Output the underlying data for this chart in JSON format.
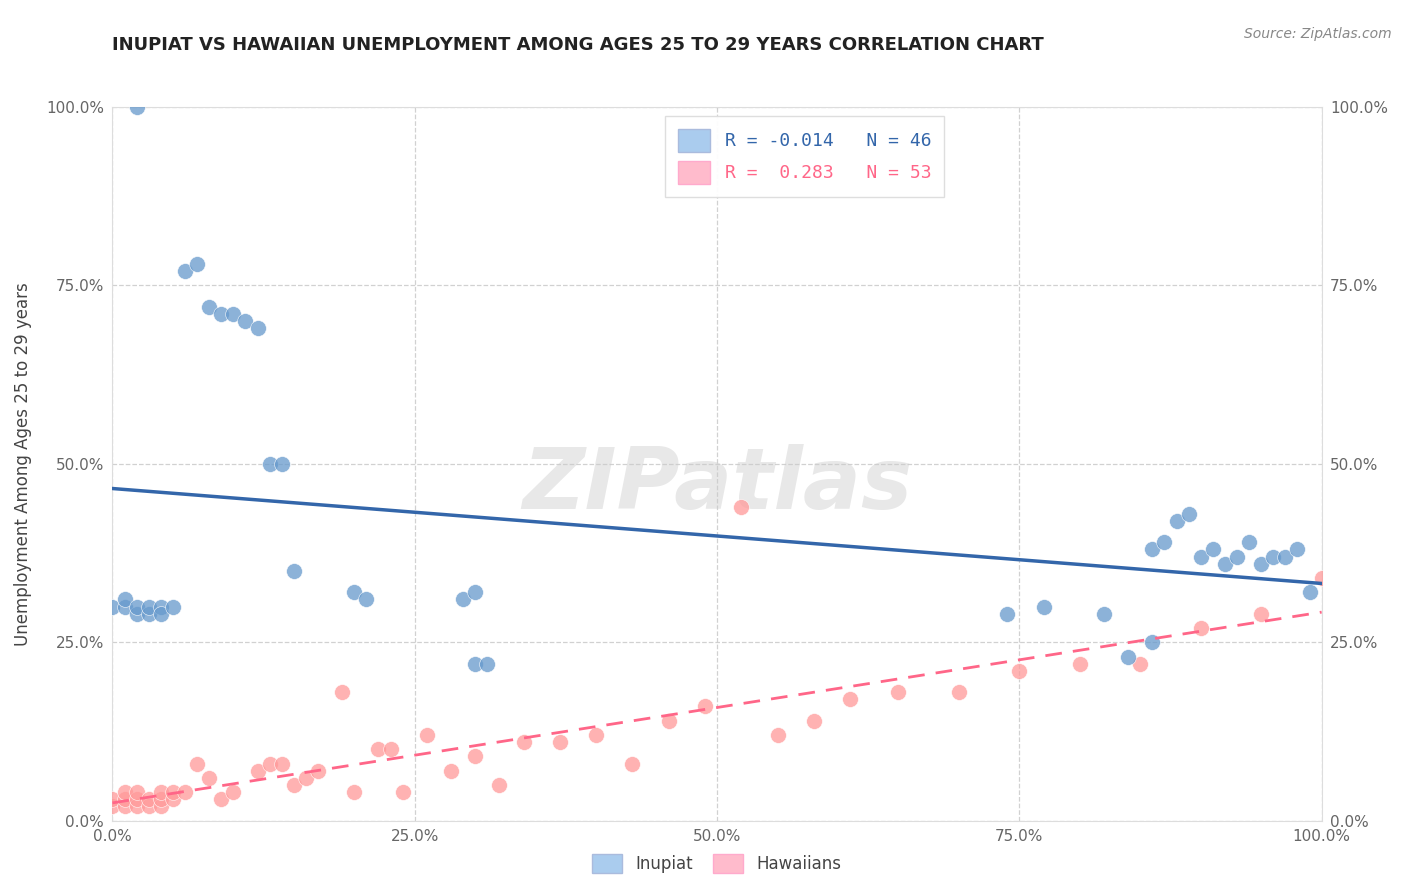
{
  "title": "INUPIAT VS HAWAIIAN UNEMPLOYMENT AMONG AGES 25 TO 29 YEARS CORRELATION CHART",
  "source_text": "Source: ZipAtlas.com",
  "ylabel": "Unemployment Among Ages 25 to 29 years",
  "xlim": [
    0.0,
    1.0
  ],
  "ylim": [
    0.0,
    1.0
  ],
  "tick_values": [
    0.0,
    0.25,
    0.5,
    0.75,
    1.0
  ],
  "tick_labels": [
    "0.0%",
    "25.0%",
    "50.0%",
    "75.0%",
    "100.0%"
  ],
  "inupiat_R": "-0.014",
  "inupiat_N": "46",
  "hawaiian_R": "0.283",
  "hawaiian_N": "53",
  "inupiat_color": "#6699CC",
  "hawaiian_color": "#FF9999",
  "inupiat_line_color": "#3366AA",
  "hawaiian_line_color": "#FF6688",
  "legend_inupiat_face": "#AACCEE",
  "legend_hawaiian_face": "#FFBBCC",
  "inupiat_x": [
    0.02,
    0.06,
    0.07,
    0.08,
    0.09,
    0.1,
    0.11,
    0.12,
    0.13,
    0.14,
    0.15,
    0.2,
    0.21,
    0.29,
    0.3,
    0.0,
    0.01,
    0.01,
    0.02,
    0.02,
    0.03,
    0.03,
    0.04,
    0.04,
    0.05,
    0.3,
    0.31,
    0.86,
    0.87,
    0.88,
    0.89,
    0.9,
    0.91,
    0.92,
    0.93,
    0.94,
    0.95,
    0.96,
    0.97,
    0.98,
    0.74,
    0.77,
    0.82,
    0.84,
    0.86,
    0.99
  ],
  "inupiat_y": [
    1.0,
    0.77,
    0.78,
    0.72,
    0.71,
    0.71,
    0.7,
    0.69,
    0.5,
    0.5,
    0.35,
    0.32,
    0.31,
    0.31,
    0.32,
    0.3,
    0.3,
    0.31,
    0.29,
    0.3,
    0.29,
    0.3,
    0.3,
    0.29,
    0.3,
    0.22,
    0.22,
    0.38,
    0.39,
    0.42,
    0.43,
    0.37,
    0.38,
    0.36,
    0.37,
    0.39,
    0.36,
    0.37,
    0.37,
    0.38,
    0.29,
    0.3,
    0.29,
    0.23,
    0.25,
    0.32
  ],
  "hawaiian_x": [
    0.0,
    0.0,
    0.01,
    0.01,
    0.01,
    0.02,
    0.02,
    0.02,
    0.03,
    0.03,
    0.04,
    0.04,
    0.04,
    0.05,
    0.05,
    0.06,
    0.07,
    0.08,
    0.09,
    0.1,
    0.12,
    0.13,
    0.14,
    0.15,
    0.16,
    0.17,
    0.19,
    0.2,
    0.22,
    0.23,
    0.24,
    0.26,
    0.28,
    0.3,
    0.32,
    0.34,
    0.37,
    0.4,
    0.43,
    0.46,
    0.49,
    0.52,
    0.55,
    0.58,
    0.61,
    0.65,
    0.7,
    0.75,
    0.8,
    0.85,
    0.9,
    0.95,
    1.0
  ],
  "hawaiian_y": [
    0.02,
    0.03,
    0.02,
    0.03,
    0.04,
    0.02,
    0.03,
    0.04,
    0.02,
    0.03,
    0.02,
    0.03,
    0.04,
    0.03,
    0.04,
    0.04,
    0.08,
    0.06,
    0.03,
    0.04,
    0.07,
    0.08,
    0.08,
    0.05,
    0.06,
    0.07,
    0.18,
    0.04,
    0.1,
    0.1,
    0.04,
    0.12,
    0.07,
    0.09,
    0.05,
    0.11,
    0.11,
    0.12,
    0.08,
    0.14,
    0.16,
    0.44,
    0.12,
    0.14,
    0.17,
    0.18,
    0.18,
    0.21,
    0.22,
    0.22,
    0.27,
    0.29,
    0.34
  ],
  "watermark_text": "ZIPatlas",
  "background_color": "#FFFFFF",
  "grid_color": "#CCCCCC",
  "title_color": "#222222",
  "axis_label_color": "#444444",
  "tick_color": "#666666"
}
